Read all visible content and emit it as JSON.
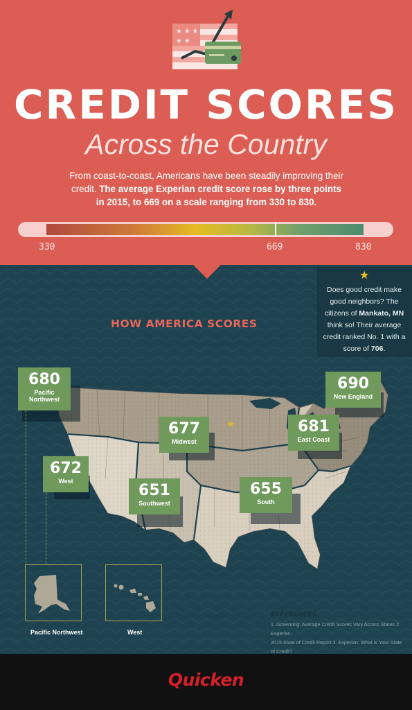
{
  "header": {
    "title": "CREDIT SCORES",
    "subtitle": "Across the Country",
    "intro_plain": "From coast-to-coast, Americans have been steadily improving their credit.",
    "intro_bold": "The average Experian credit score rose by three points in 2015, to 669 on a scale ranging from 330 to 830."
  },
  "scale": {
    "min_label": "330",
    "avg_label": "669",
    "max_label": "830",
    "min": 330,
    "avg": 669,
    "max": 830
  },
  "callout": {
    "icon": "star-icon",
    "text_1": "Does good credit make good neighbors? The citizens of",
    "city": "Mankato, MN",
    "text_2": "think so! Their average credit ranked No. 1 with a score of",
    "score": "706",
    "text_3": "."
  },
  "section_title": "HOW AMERICA SCORES",
  "regions": [
    {
      "score": "680",
      "label": "Pacific Northwest"
    },
    {
      "score": "690",
      "label": "New England"
    },
    {
      "score": "677",
      "label": "Midwest"
    },
    {
      "score": "681",
      "label": "East Coast"
    },
    {
      "score": "672",
      "label": "West"
    },
    {
      "score": "651",
      "label": "Southwest"
    },
    {
      "score": "655",
      "label": "South"
    }
  ],
  "insets": [
    {
      "label": "Pacific Northwest"
    },
    {
      "label": "West"
    }
  ],
  "references": {
    "title": "REFERENCES:",
    "line_1": "1. Governing: Average Credit Scores Vary Across States   2. Experian:",
    "line_2": "2015 State of Credit Report   3. Experian: What Is Your State of Credit?"
  },
  "footer": {
    "brand": "Quicken"
  },
  "colors": {
    "header_bg": "#db5d53",
    "map_bg": "#1e4250",
    "badge": "#6f9a5c",
    "accent_title": "#e8665b",
    "brand": "#d3202a"
  }
}
